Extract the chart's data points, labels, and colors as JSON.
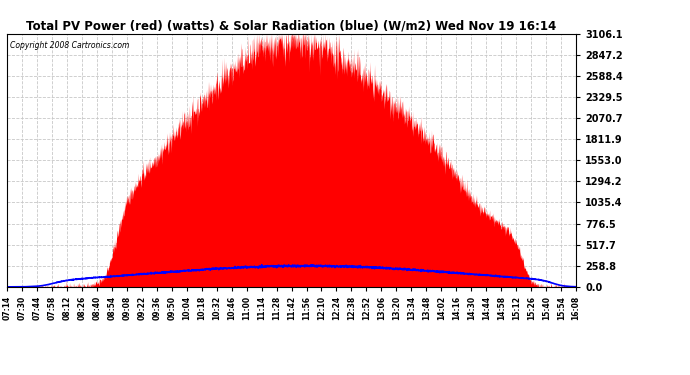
{
  "title": "Total PV Power (red) (watts) & Solar Radiation (blue) (W/m2) Wed Nov 19 16:14",
  "copyright": "Copyright 2008 Cartronics.com",
  "background_color": "#ffffff",
  "plot_bg_color": "#ffffff",
  "grid_color": "#c8c8c8",
  "grid_style": "--",
  "y_max": 3106.1,
  "y_min": 0.0,
  "y_ticks": [
    0.0,
    258.8,
    517.7,
    776.5,
    1035.4,
    1294.2,
    1553.0,
    1811.9,
    2070.7,
    2329.5,
    2588.4,
    2847.2,
    3106.1
  ],
  "x_labels": [
    "07:14",
    "07:30",
    "07:44",
    "07:58",
    "08:12",
    "08:26",
    "08:40",
    "08:54",
    "09:08",
    "09:22",
    "09:36",
    "09:50",
    "10:04",
    "10:18",
    "10:32",
    "10:46",
    "11:00",
    "11:14",
    "11:28",
    "11:42",
    "11:56",
    "12:10",
    "12:24",
    "12:38",
    "12:52",
    "13:06",
    "13:20",
    "13:34",
    "13:48",
    "14:02",
    "14:16",
    "14:30",
    "14:44",
    "14:58",
    "15:12",
    "15:26",
    "15:40",
    "15:54",
    "16:08"
  ],
  "pv_color": "#ff0000",
  "solar_color": "#0000ff"
}
